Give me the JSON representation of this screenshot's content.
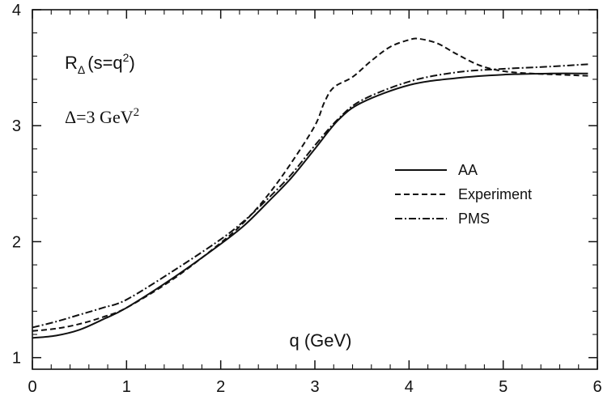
{
  "chart_data": {
    "type": "line",
    "xlabel": "q (GeV)",
    "ylabel": "",
    "xlim": [
      0,
      6
    ],
    "ylim": [
      0.9,
      4.0
    ],
    "xticks": [
      0,
      1,
      2,
      3,
      4,
      5,
      6
    ],
    "yticks": [
      1,
      2,
      3,
      4
    ],
    "grid": false,
    "legend_position": "right",
    "annotations": {
      "r_main": "R",
      "r_sub": "Δ",
      "r_args": "(s=q",
      "r_sup": "2",
      "r_close": ")",
      "delta_text": "Δ=3 GeV",
      "delta_sup": "2"
    },
    "series": [
      {
        "name": "AA",
        "style": "solid",
        "x": [
          0,
          0.25,
          0.5,
          0.75,
          1.0,
          1.5,
          2.0,
          2.25,
          2.5,
          2.75,
          3.0,
          3.25,
          3.5,
          4.0,
          4.5,
          5.0,
          5.5,
          5.9
        ],
        "y": [
          1.17,
          1.19,
          1.24,
          1.33,
          1.43,
          1.69,
          1.98,
          2.14,
          2.34,
          2.55,
          2.8,
          3.05,
          3.2,
          3.35,
          3.41,
          3.44,
          3.45,
          3.45
        ]
      },
      {
        "name": "Experiment",
        "style": "dashed",
        "x": [
          0,
          0.25,
          0.5,
          0.75,
          1.0,
          1.5,
          2.0,
          2.25,
          2.5,
          2.75,
          3.0,
          3.1,
          3.2,
          3.4,
          3.6,
          3.8,
          4.0,
          4.1,
          4.3,
          4.5,
          4.75,
          5.0,
          5.3,
          5.6,
          5.9
        ],
        "y": [
          1.23,
          1.25,
          1.29,
          1.35,
          1.43,
          1.68,
          1.99,
          2.17,
          2.4,
          2.68,
          3.0,
          3.2,
          3.33,
          3.42,
          3.56,
          3.68,
          3.74,
          3.75,
          3.71,
          3.62,
          3.52,
          3.47,
          3.45,
          3.44,
          3.43
        ]
      },
      {
        "name": "PMS",
        "style": "dash-dot",
        "x": [
          0,
          0.25,
          0.5,
          0.75,
          1.0,
          1.5,
          2.0,
          2.25,
          2.5,
          2.75,
          3.0,
          3.25,
          3.5,
          4.0,
          4.5,
          5.0,
          5.5,
          5.9
        ],
        "y": [
          1.26,
          1.31,
          1.37,
          1.43,
          1.5,
          1.75,
          2.02,
          2.18,
          2.37,
          2.58,
          2.83,
          3.06,
          3.22,
          3.38,
          3.46,
          3.49,
          3.51,
          3.53
        ]
      }
    ]
  }
}
